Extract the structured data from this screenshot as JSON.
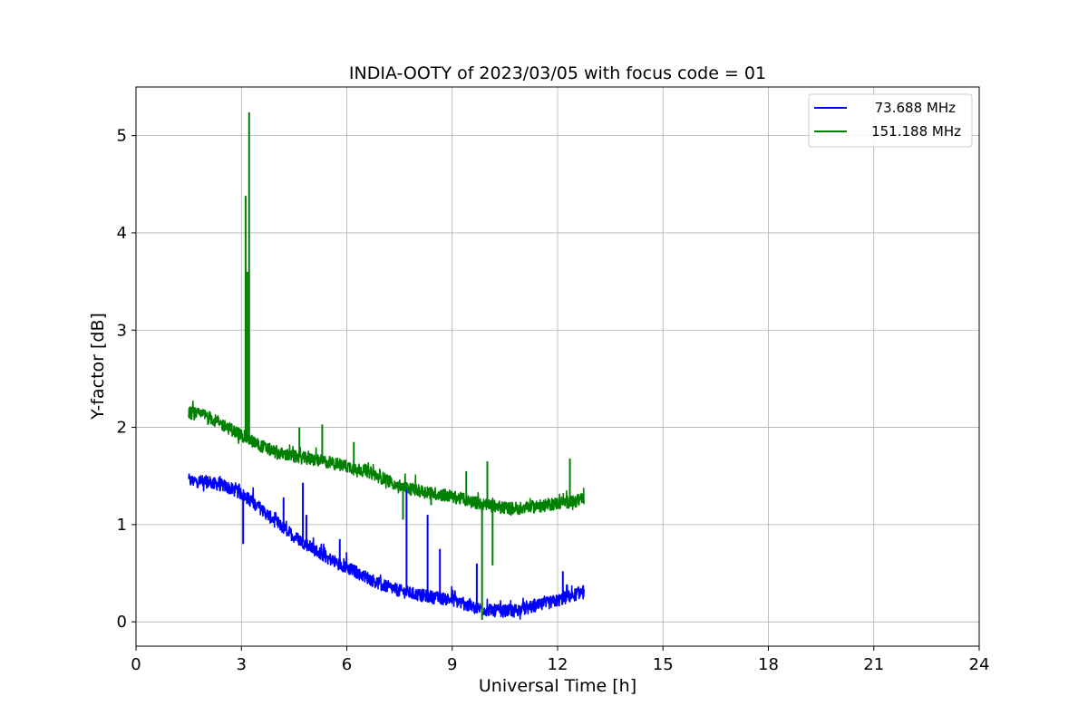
{
  "chart_data": {
    "type": "line",
    "title": "INDIA-OOTY of 2023/03/05 with focus code = 01",
    "xlabel": "Universal Time [h]",
    "ylabel": "Y-factor [dB]",
    "xlim": [
      0,
      24
    ],
    "ylim": [
      -0.25,
      5.5
    ],
    "xticks": [
      0,
      3,
      6,
      9,
      12,
      15,
      18,
      21,
      24
    ],
    "yticks": [
      0,
      1,
      2,
      3,
      4,
      5
    ],
    "grid": true,
    "legend_position": "top-right",
    "series": [
      {
        "name": "73.688 MHz",
        "color": "#0000ff",
        "x": [
          1.5,
          2.0,
          2.5,
          3.0,
          3.5,
          4.0,
          4.5,
          5.0,
          5.5,
          6.0,
          6.5,
          7.0,
          7.5,
          8.0,
          8.5,
          9.0,
          9.5,
          10.0,
          10.5,
          11.0,
          11.5,
          12.0,
          12.5,
          12.75
        ],
        "y": [
          1.45,
          1.44,
          1.4,
          1.32,
          1.18,
          1.02,
          0.88,
          0.76,
          0.65,
          0.56,
          0.47,
          0.38,
          0.32,
          0.28,
          0.25,
          0.23,
          0.16,
          0.12,
          0.11,
          0.13,
          0.17,
          0.22,
          0.28,
          0.32
        ],
        "spikes": [
          {
            "x": 3.05,
            "y": 0.8
          },
          {
            "x": 3.2,
            "y": 1.3
          },
          {
            "x": 4.2,
            "y": 1.28
          },
          {
            "x": 4.75,
            "y": 1.43
          },
          {
            "x": 4.85,
            "y": 1.1
          },
          {
            "x": 5.8,
            "y": 0.85
          },
          {
            "x": 7.7,
            "y": 1.38
          },
          {
            "x": 8.3,
            "y": 1.1
          },
          {
            "x": 8.65,
            "y": 0.75
          },
          {
            "x": 9.7,
            "y": 0.6
          },
          {
            "x": 12.15,
            "y": 0.52
          }
        ]
      },
      {
        "name": "151.188 MHz",
        "color": "#008000",
        "x": [
          1.5,
          2.0,
          2.5,
          3.0,
          3.5,
          4.0,
          4.5,
          5.0,
          5.5,
          6.0,
          6.5,
          7.0,
          7.5,
          8.0,
          8.5,
          9.0,
          9.5,
          10.0,
          10.5,
          11.0,
          11.5,
          12.0,
          12.5,
          12.75
        ],
        "y": [
          2.15,
          2.12,
          2.02,
          1.92,
          1.82,
          1.74,
          1.7,
          1.67,
          1.64,
          1.6,
          1.56,
          1.48,
          1.4,
          1.35,
          1.32,
          1.29,
          1.24,
          1.2,
          1.17,
          1.17,
          1.19,
          1.22,
          1.24,
          1.26
        ],
        "spikes": [
          {
            "x": 3.12,
            "y": 4.38
          },
          {
            "x": 3.22,
            "y": 5.24
          },
          {
            "x": 3.17,
            "y": 3.6
          },
          {
            "x": 4.65,
            "y": 2.0
          },
          {
            "x": 5.3,
            "y": 2.03
          },
          {
            "x": 6.2,
            "y": 1.85
          },
          {
            "x": 7.6,
            "y": 1.05
          },
          {
            "x": 8.4,
            "y": 1.2
          },
          {
            "x": 9.4,
            "y": 1.55
          },
          {
            "x": 9.85,
            "y": 0.02
          },
          {
            "x": 10.0,
            "y": 1.65
          },
          {
            "x": 10.15,
            "y": 0.58
          },
          {
            "x": 12.35,
            "y": 1.68
          }
        ]
      }
    ]
  }
}
